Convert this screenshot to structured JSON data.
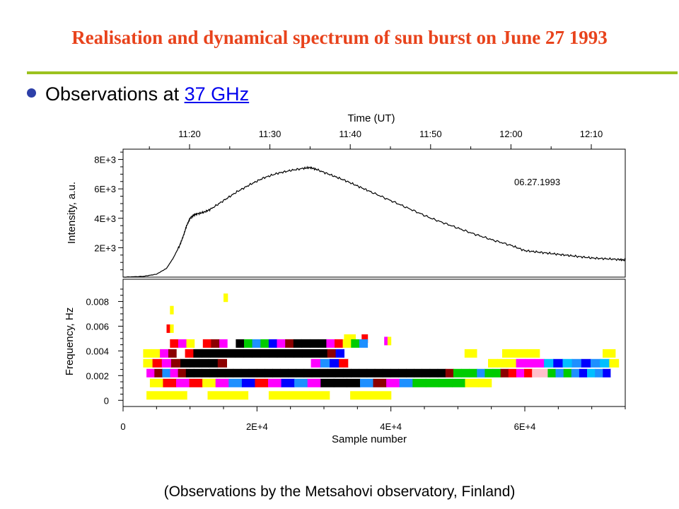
{
  "slide": {
    "title": "Realisation and dynamical spectrum of sun burst on June 27 1993",
    "bullet_text": "Observations at ",
    "bullet_link": "37 GHz",
    "caption": "(Observations by the Metsahovi observatory, Finland)"
  },
  "colors": {
    "title": "#e8431c",
    "rule": "#9cc21f",
    "bullet": "#2d3fa8",
    "link": "#0000ee"
  },
  "chart_data": [
    {
      "type": "line",
      "title": "",
      "annotation": "06.27.1993",
      "top_axis_label": "Time (UT)",
      "top_ticks": [
        "11:20",
        "11:30",
        "11:40",
        "11:50",
        "12:00",
        "12:10"
      ],
      "ylabel": "Intensity, a.u.",
      "y_ticks": [
        "2E+3",
        "4E+3",
        "6E+3",
        "8E+3"
      ],
      "xlim": [
        0,
        75000
      ],
      "ylim": [
        0,
        8700
      ],
      "series": [
        {
          "x": [
            0,
            3000,
            5000,
            6500,
            7500,
            8500,
            9000,
            9500,
            10000,
            10500,
            11000,
            12000,
            13000,
            15000,
            17000,
            19000,
            21000,
            23000,
            25000,
            27000,
            28000,
            29000,
            31000,
            33000,
            35000,
            37000,
            40000,
            43000,
            46000,
            49000,
            52000,
            55000,
            58000,
            60000,
            62000,
            64000,
            66000,
            68000,
            70000,
            72000,
            74000,
            75000
          ],
          "y": [
            0,
            50,
            200,
            600,
            1300,
            2200,
            2800,
            3500,
            4000,
            4200,
            4300,
            4400,
            4600,
            5200,
            5800,
            6300,
            6750,
            7050,
            7250,
            7400,
            7450,
            7300,
            6950,
            6600,
            6200,
            5800,
            5200,
            4600,
            4000,
            3500,
            3000,
            2550,
            2150,
            1800,
            1700,
            1600,
            1500,
            1400,
            1300,
            1250,
            1200,
            1150
          ]
        }
      ]
    },
    {
      "type": "heatmap",
      "title": "",
      "xlabel": "Sample number",
      "ylabel": "Frequency, Hz",
      "x_ticks": [
        "0",
        "2E+4",
        "4E+4",
        "6E+4"
      ],
      "y_ticks": [
        "0",
        "0.002",
        "0.004",
        "0.006",
        "0.008"
      ],
      "xlim": [
        0,
        75000
      ],
      "ylim": [
        -0.0005,
        0.0098
      ],
      "bands": [
        {
          "f": 0.0083,
          "x0": 15000,
          "x1": 15600,
          "colors": [
            "#ffff00"
          ]
        },
        {
          "f": 0.0073,
          "x0": 7000,
          "x1": 7500,
          "colors": [
            "#ffff00"
          ]
        },
        {
          "f": 0.0058,
          "x0": 6500,
          "x1": 7500,
          "colors": [
            "#ff0000",
            "#ffff00"
          ]
        },
        {
          "f": 0.005,
          "x0": 33000,
          "x1": 36500,
          "colors": [
            "#ffff00",
            "#ffff00",
            "#ffffff",
            "#ff0000"
          ]
        },
        {
          "f": 0.0048,
          "x0": 39000,
          "x1": 40000,
          "colors": [
            "#ff00ff",
            "#ffff00"
          ]
        },
        {
          "f": 0.0046,
          "x0": 7000,
          "x1": 36500,
          "colors": [
            "#ff0000",
            "#ff00ff",
            "#ffff00",
            "#ffffff",
            "#ff0000",
            "#8b0000",
            "#ff00ff",
            "#ffffff",
            "#000000",
            "#00cc00",
            "#1e90ff",
            "#00cc00",
            "#0000ff",
            "#ff00ff",
            "#8b0000",
            "#000000",
            "#000000",
            "#000000",
            "#000000",
            "#ff00ff",
            "#ff0000",
            "#ffff00",
            "#00cc00",
            "#1e90ff"
          ]
        },
        {
          "f": 0.0038,
          "x0": 3000,
          "x1": 33000,
          "colors": [
            "#ffff00",
            "#ffff00",
            "#ff00ff",
            "#8b0000",
            "#ffffff",
            "#ff0000",
            "#000000",
            "#000000",
            "#000000",
            "#000000",
            "#000000",
            "#000000",
            "#000000",
            "#000000",
            "#000000",
            "#000000",
            "#000000",
            "#000000",
            "#000000",
            "#000000",
            "#000000",
            "#000000",
            "#8b0000",
            "#0000ff"
          ]
        },
        {
          "f": 0.0038,
          "x0": 51000,
          "x1": 73500,
          "colors": [
            "#ffff00",
            "#ffffff",
            "#ffffff",
            "#ffff00",
            "#ffff00",
            "#ffff00",
            "#ffffff",
            "#ffffff",
            "#ffffff",
            "#ffffff",
            "#ffffff",
            "#ffff00"
          ]
        },
        {
          "f": 0.003,
          "x0": 3000,
          "x1": 74000,
          "colors": [
            "#ffff00",
            "#ff0000",
            "#ff00ff",
            "#8b0000",
            "#000000",
            "#000000",
            "#000000",
            "#000000",
            "#8b0000",
            "#ffffff",
            "#ffffff",
            "#ffffff",
            "#ffffff",
            "#ffffff",
            "#ffffff",
            "#ffffff",
            "#ffffff",
            "#ffffff",
            "#ff00ff",
            "#1e90ff",
            "#0000ff",
            "#ff0000",
            "#ffffff",
            "#ffffff",
            "#ffffff",
            "#ffffff",
            "#ffffff",
            "#ffffff",
            "#ffffff",
            "#ffffff",
            "#ffffff",
            "#ffffff",
            "#ffffff",
            "#ffffff",
            "#ffffff",
            "#ffffff",
            "#ffffff",
            "#ffff00",
            "#ffff00",
            "#ffff00",
            "#ff00ff",
            "#ff00ff",
            "#ff00ff",
            "#00bfff",
            "#0000ff",
            "#00bfff",
            "#1e90ff",
            "#0000ff",
            "#1e90ff",
            "#00bfff",
            "#ffff00"
          ]
        },
        {
          "f": 0.0022,
          "x0": 3500,
          "x1": 74000,
          "colors": [
            "#ff00ff",
            "#8b0000",
            "#1e90ff",
            "#ff00ff",
            "#8b0000",
            "#000000",
            "#000000",
            "#000000",
            "#000000",
            "#000000",
            "#000000",
            "#000000",
            "#000000",
            "#000000",
            "#000000",
            "#000000",
            "#000000",
            "#000000",
            "#000000",
            "#000000",
            "#000000",
            "#000000",
            "#000000",
            "#000000",
            "#000000",
            "#000000",
            "#000000",
            "#000000",
            "#000000",
            "#000000",
            "#000000",
            "#000000",
            "#000000",
            "#000000",
            "#000000",
            "#000000",
            "#000000",
            "#000000",
            "#8b0000",
            "#00cc00",
            "#00cc00",
            "#00cc00",
            "#1e90ff",
            "#00cc00",
            "#00cc00",
            "#8b0000",
            "#ff0000",
            "#ff00ff",
            "#ff0000",
            "#ffc0cb",
            "#ffc0cb",
            "#00cc00",
            "#1e90ff",
            "#00cc00",
            "#1e90ff",
            "#0000ff",
            "#00bfff",
            "#1e90ff",
            "#0000ff",
            "#ffffff"
          ]
        },
        {
          "f": 0.0014,
          "x0": 4000,
          "x1": 55000,
          "colors": [
            "#ffff00",
            "#ff0000",
            "#ff00ff",
            "#ff0000",
            "#ffff00",
            "#ff00ff",
            "#1e90ff",
            "#0000ff",
            "#ff0000",
            "#ff00ff",
            "#0000ff",
            "#1e90ff",
            "#ff00ff",
            "#000000",
            "#000000",
            "#000000",
            "#1e90ff",
            "#8b0000",
            "#ff00ff",
            "#1e90ff",
            "#00cc00",
            "#00cc00",
            "#00cc00",
            "#00cc00",
            "#ffff00",
            "#ffff00"
          ]
        },
        {
          "f": 0.0004,
          "x0": 3500,
          "x1": 40000,
          "colors": [
            "#ffff00",
            "#ffff00",
            "#ffffff",
            "#ffff00",
            "#ffff00",
            "#ffffff",
            "#ffff00",
            "#ffff00",
            "#ffff00",
            "#ffffff",
            "#ffff00",
            "#ffff00"
          ]
        }
      ]
    }
  ]
}
